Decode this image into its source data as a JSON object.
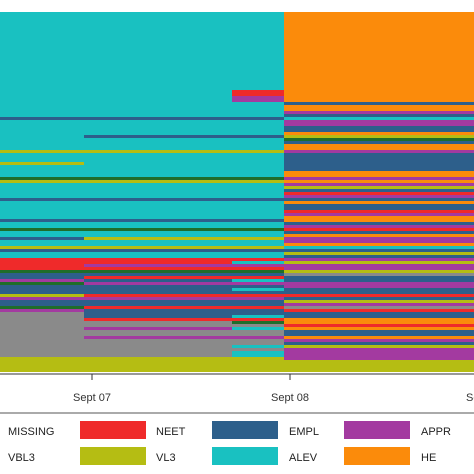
{
  "chart_data": {
    "type": "sequence-index-plot",
    "title": "",
    "xlabel": "",
    "ylabel": "",
    "x_ticks": [
      "Sept 07",
      "Sept 08",
      "Se"
    ],
    "grid": false,
    "legend_placement": "bottom",
    "states": [
      {
        "name": "MISSING",
        "color": "#8a8a8a"
      },
      {
        "name": "NEET",
        "color": "#ef2a2a"
      },
      {
        "name": "EMPL",
        "color": "#2d5f8b"
      },
      {
        "name": "APPR",
        "color": "#a33aa0"
      },
      {
        "name": "VBL3",
        "color": "#1f6d2a"
      },
      {
        "name": "VL3",
        "color": "#b5bd13"
      },
      {
        "name": "ALEV",
        "color": "#19c1c1"
      },
      {
        "name": "HE",
        "color": "#fb8b0b"
      }
    ],
    "legend_rows": [
      [
        "MISSING",
        "NEET",
        "EMPL",
        "APPR"
      ],
      [
        "VBL3",
        "VL3",
        "ALEV",
        "HE"
      ]
    ],
    "sequences_proportion": [
      {
        "segment": "start-Sept 07",
        "ALEV": 0.62,
        "VL3": 0.07,
        "EMPL": 0.08,
        "APPR": 0.05,
        "NEET": 0.03,
        "VBL3": 0.04,
        "MISSING": 0.11
      },
      {
        "segment": "Sept 07-Sept 08",
        "ALEV": 0.58,
        "VL3": 0.1,
        "EMPL": 0.09,
        "APPR": 0.05,
        "NEET": 0.02,
        "VBL3": 0.04,
        "MISSING": 0.12
      },
      {
        "segment": "Sept 08-end",
        "HE": 0.4,
        "EMPL": 0.22,
        "APPR": 0.14,
        "ALEV": 0.08,
        "VL3": 0.06,
        "NEET": 0.05,
        "VBL3": 0.02,
        "MISSING": 0.03
      }
    ]
  }
}
